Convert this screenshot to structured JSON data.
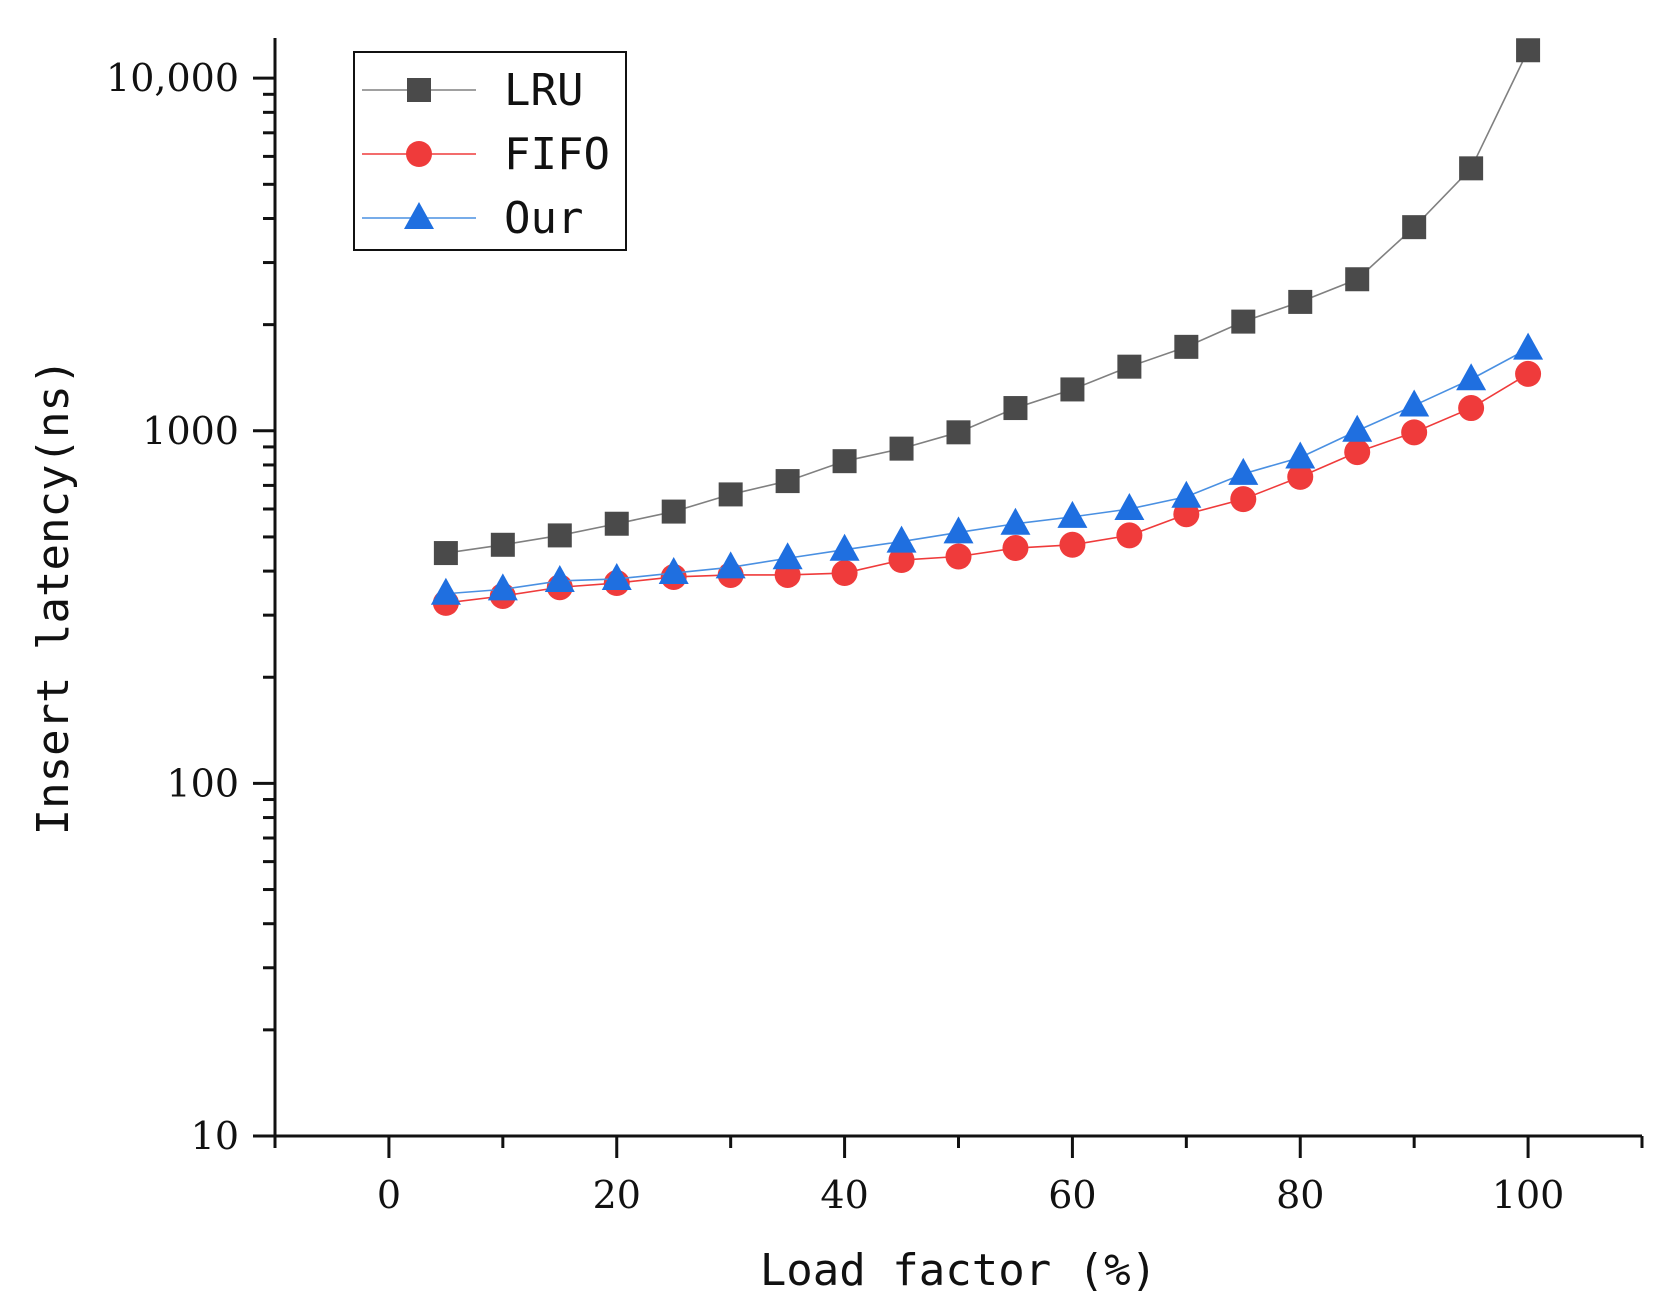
{
  "chart_data": {
    "type": "line",
    "title": "",
    "xlabel": "Load factor (%)",
    "ylabel": "Insert latency(ns)",
    "yscale": "log",
    "xlim": [
      -10,
      110
    ],
    "ylim": [
      10,
      13000
    ],
    "grid": false,
    "legend_position": "top-left",
    "x_ticks": [
      0,
      20,
      40,
      60,
      80,
      100
    ],
    "x_tick_labels": [
      "0",
      "20",
      "40",
      "60",
      "80",
      "100"
    ],
    "y_ticks": [
      10,
      100,
      1000,
      10000
    ],
    "y_tick_labels": [
      "10",
      "100",
      "1000",
      "10,000"
    ],
    "x": [
      5,
      10,
      15,
      20,
      25,
      30,
      35,
      40,
      45,
      50,
      55,
      60,
      65,
      70,
      75,
      80,
      85,
      90,
      95,
      100
    ],
    "series": [
      {
        "name": "LRU",
        "color": "#4a4a4a",
        "line_color": "#808080",
        "marker": "square",
        "values": [
          450,
          475,
          505,
          545,
          590,
          660,
          720,
          820,
          890,
          990,
          1160,
          1310,
          1520,
          1730,
          2040,
          2320,
          2690,
          3780,
          5550,
          12000
        ]
      },
      {
        "name": "FIFO",
        "color": "#ef3b3b",
        "line_color": "#ef3b3b",
        "marker": "circle",
        "values": [
          325,
          340,
          360,
          370,
          385,
          390,
          390,
          395,
          430,
          440,
          465,
          475,
          505,
          580,
          640,
          740,
          870,
          990,
          1160,
          1450
        ]
      },
      {
        "name": "Our",
        "color": "#1f6fe0",
        "line_color": "#4a90e2",
        "marker": "triangle",
        "values": [
          345,
          355,
          375,
          380,
          395,
          410,
          435,
          460,
          485,
          515,
          545,
          570,
          600,
          650,
          755,
          840,
          1000,
          1180,
          1400,
          1710
        ]
      }
    ]
  }
}
